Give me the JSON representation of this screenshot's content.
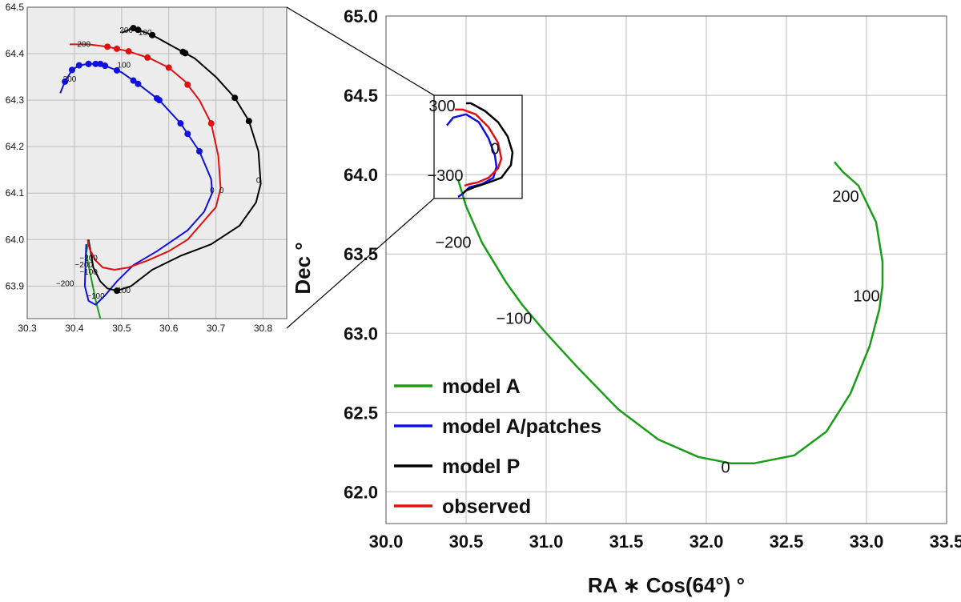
{
  "chart_data": [
    {
      "id": "main",
      "type": "line",
      "xlabel": "RA ∗ Cos(64°) °",
      "ylabel": "Dec °",
      "xlim": [
        30.0,
        33.5
      ],
      "ylim": [
        61.8,
        65.0
      ],
      "x_ticks": [
        "30.0",
        "30.5",
        "31.0",
        "31.5",
        "32.0",
        "32.5",
        "33.0",
        "33.5"
      ],
      "y_ticks": [
        "62.0",
        "62.5",
        "63.0",
        "63.5",
        "64.0",
        "64.5",
        "65.0"
      ],
      "grid": true,
      "legend_position": "bottom-left",
      "legend": [
        {
          "name": "model A",
          "color": "#1a9e1a"
        },
        {
          "name": "model A/patches",
          "color": "#1010e0"
        },
        {
          "name": "model P",
          "color": "#000000"
        },
        {
          "name": "observed",
          "color": "#e01010"
        }
      ],
      "series": [
        {
          "name": "model A",
          "color": "#1a9e1a",
          "x": [
            30.45,
            30.5,
            30.6,
            30.75,
            30.85,
            31.0,
            31.2,
            31.45,
            31.7,
            31.95,
            32.15,
            32.3,
            32.55,
            32.75,
            32.9,
            33.02,
            33.08,
            33.1,
            33.1,
            33.06,
            32.95,
            32.85,
            32.8
          ],
          "y": [
            63.97,
            63.8,
            63.57,
            63.32,
            63.18,
            63.0,
            62.78,
            62.52,
            62.33,
            62.22,
            62.18,
            62.18,
            62.23,
            62.38,
            62.62,
            62.92,
            63.15,
            63.3,
            63.45,
            63.7,
            63.93,
            64.02,
            64.08
          ]
        },
        {
          "name": "model A/patches",
          "color": "#1010e0",
          "x": [
            30.38,
            30.42,
            30.5,
            30.58,
            30.64,
            30.68,
            30.69,
            30.67,
            30.6,
            30.52,
            30.48,
            30.45
          ],
          "y": [
            64.31,
            64.36,
            64.38,
            64.33,
            64.23,
            64.12,
            64.05,
            63.98,
            63.94,
            63.92,
            63.88,
            63.86
          ]
        },
        {
          "name": "model P",
          "color": "#000000",
          "x": [
            30.5,
            30.53,
            30.62,
            30.7,
            30.76,
            30.79,
            30.78,
            30.72,
            30.64,
            30.55,
            30.5,
            30.48
          ],
          "y": [
            64.45,
            64.45,
            64.4,
            64.33,
            64.24,
            64.14,
            64.06,
            63.98,
            63.95,
            63.92,
            63.9,
            63.88
          ]
        },
        {
          "name": "observed",
          "color": "#e01010",
          "x": [
            30.43,
            30.48,
            30.56,
            30.64,
            30.7,
            30.72,
            30.7,
            30.64,
            30.57,
            30.52,
            30.49
          ],
          "y": [
            64.41,
            64.41,
            64.38,
            64.3,
            64.2,
            64.1,
            64.04,
            63.98,
            63.95,
            63.94,
            63.93
          ]
        }
      ],
      "annotations": [
        {
          "text": "0",
          "x": 32.12,
          "y": 62.12
        },
        {
          "text": "100",
          "x": 33.0,
          "y": 63.2
        },
        {
          "text": "200",
          "x": 32.87,
          "y": 63.83
        },
        {
          "text": "−100",
          "x": 30.8,
          "y": 63.06
        },
        {
          "text": "−200",
          "x": 30.42,
          "y": 63.54
        },
        {
          "text": "300",
          "x": 30.35,
          "y": 64.4
        },
        {
          "text": "0",
          "x": 30.68,
          "y": 64.13
        },
        {
          "text": "−300",
          "x": 30.37,
          "y": 63.96
        }
      ],
      "zoom_box": {
        "x": [
          30.3,
          30.85
        ],
        "y": [
          63.85,
          64.5
        ]
      }
    },
    {
      "id": "inset",
      "type": "line",
      "xlim": [
        30.3,
        30.85
      ],
      "ylim": [
        63.83,
        64.5
      ],
      "x_ticks": [
        "30.3",
        "30.4",
        "30.5",
        "30.6",
        "30.7",
        "30.8"
      ],
      "y_ticks": [
        "63.9",
        "64.0",
        "64.1",
        "64.2",
        "64.3",
        "64.4",
        "64.5"
      ],
      "grid": true,
      "series": [
        {
          "name": "model A",
          "color": "#1a9e1a",
          "x": [
            30.455,
            30.445,
            30.435,
            30.425,
            30.43
          ],
          "y": [
            63.83,
            63.87,
            63.92,
            63.97,
            64.0
          ]
        },
        {
          "name": "model A/patches",
          "color": "#1010e0",
          "x": [
            30.37,
            30.38,
            30.395,
            30.41,
            30.43,
            30.455,
            30.5,
            30.535,
            30.58,
            30.625,
            30.665,
            30.69,
            30.692,
            30.675,
            30.64,
            30.575,
            30.525,
            30.49,
            30.465,
            30.445,
            30.43,
            30.422,
            30.425
          ],
          "y": [
            64.315,
            64.34,
            64.365,
            64.375,
            64.378,
            64.378,
            64.36,
            64.335,
            64.3,
            64.25,
            64.19,
            64.13,
            64.1,
            64.06,
            64.02,
            63.975,
            63.945,
            63.91,
            63.88,
            63.86,
            63.868,
            63.9,
            63.99
          ]
        },
        {
          "name": "model P",
          "color": "#000000",
          "x": [
            30.5,
            30.525,
            30.565,
            30.61,
            30.655,
            30.7,
            30.74,
            30.77,
            30.79,
            30.795,
            30.785,
            30.75,
            30.69,
            30.625,
            30.565,
            30.52,
            30.49,
            30.47,
            30.455,
            30.44,
            30.43
          ],
          "y": [
            64.445,
            64.455,
            64.44,
            64.415,
            64.39,
            64.35,
            64.305,
            64.255,
            64.19,
            64.12,
            64.08,
            64.03,
            63.99,
            63.965,
            63.935,
            63.9,
            63.89,
            63.895,
            63.91,
            63.94,
            64.0
          ]
        },
        {
          "name": "observed",
          "color": "#e01010",
          "x": [
            30.39,
            30.43,
            30.47,
            30.515,
            30.56,
            30.6,
            30.635,
            30.665,
            30.69,
            30.705,
            30.71,
            30.7,
            30.67,
            30.64,
            30.6,
            30.555,
            30.515,
            30.485,
            30.46,
            30.445,
            30.432,
            30.428
          ],
          "y": [
            64.42,
            64.42,
            64.415,
            64.405,
            64.39,
            64.37,
            64.34,
            64.3,
            64.25,
            64.18,
            64.11,
            64.07,
            64.035,
            64.0,
            63.975,
            63.955,
            63.94,
            63.935,
            63.94,
            63.955,
            63.98,
            64.0
          ]
        }
      ],
      "markers": [
        {
          "series": "model A/patches",
          "x": [
            30.38,
            30.395,
            30.41,
            30.43,
            30.455,
            30.535,
            30.58,
            30.625,
            30.665,
            30.64,
            30.575,
            30.525,
            30.49,
            30.465,
            30.445,
            30.43
          ]
        },
        {
          "series": "model P",
          "x": [
            30.525,
            30.565,
            30.635,
            30.77,
            30.74,
            30.63,
            30.565,
            30.535,
            30.49
          ]
        },
        {
          "series": "observed",
          "x": [
            30.47,
            30.515,
            30.6,
            30.69,
            30.64,
            30.555,
            30.49
          ]
        }
      ],
      "annotations": [
        {
          "text": "200",
          "x": 30.51,
          "y": 64.445
        },
        {
          "text": "100",
          "x": 30.55,
          "y": 64.44
        },
        {
          "text": "200",
          "x": 30.42,
          "y": 64.415
        },
        {
          "text": "200",
          "x": 30.39,
          "y": 64.34
        },
        {
          "text": "100",
          "x": 30.505,
          "y": 64.37
        },
        {
          "text": "0",
          "x": 30.79,
          "y": 64.122
        },
        {
          "text": "0",
          "x": 30.692,
          "y": 64.1
        },
        {
          "text": "0",
          "x": 30.712,
          "y": 64.1
        },
        {
          "text": "−200",
          "x": 30.43,
          "y": 63.955
        },
        {
          "text": "−200",
          "x": 30.42,
          "y": 63.94
        },
        {
          "text": "−100",
          "x": 30.43,
          "y": 63.925
        },
        {
          "text": "−200",
          "x": 30.38,
          "y": 63.9
        },
        {
          "text": "−100",
          "x": 30.5,
          "y": 63.885
        },
        {
          "text": "−100",
          "x": 30.445,
          "y": 63.873
        }
      ]
    }
  ]
}
